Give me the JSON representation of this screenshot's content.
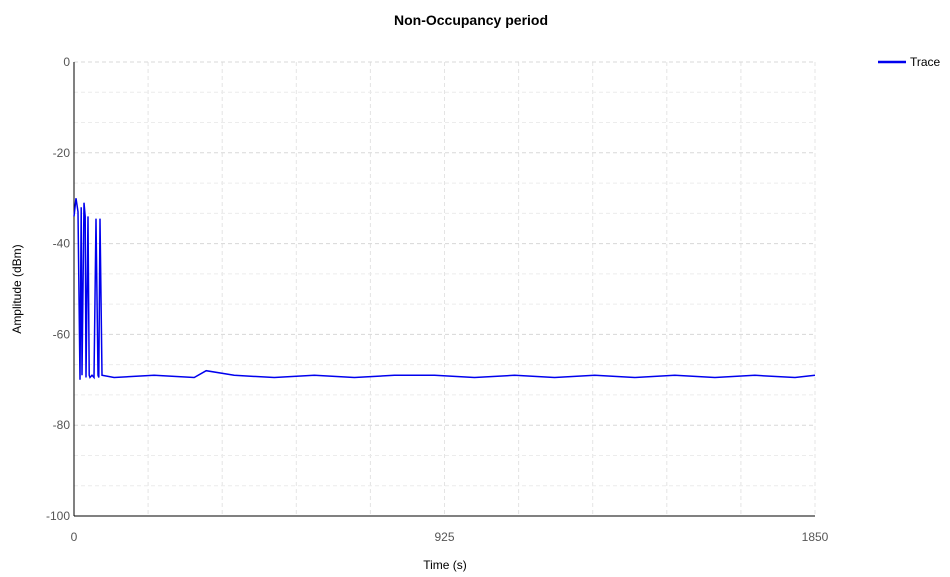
{
  "chart_data": {
    "type": "line",
    "title": "Non-Occupancy period",
    "xlabel": "Time (s)",
    "ylabel": "Amplitude (dBm)",
    "xlim": [
      0,
      1850
    ],
    "ylim": [
      -100,
      0
    ],
    "x_ticks": [
      "0",
      "925",
      "1850"
    ],
    "y_ticks": [
      "0",
      "-20",
      "-40",
      "-60",
      "-80",
      "-100"
    ],
    "grid": true,
    "legend_position": "top-right",
    "series": [
      {
        "name": "Trace",
        "color": "#0000ee",
        "x": [
          0,
          5,
          10,
          15,
          18,
          20,
          25,
          28,
          30,
          35,
          38,
          40,
          45,
          50,
          55,
          60,
          62,
          65,
          70,
          100,
          200,
          300,
          330,
          400,
          500,
          600,
          700,
          800,
          900,
          1000,
          1100,
          1200,
          1300,
          1400,
          1500,
          1600,
          1700,
          1800,
          1850
        ],
        "y": [
          -34,
          -30,
          -33,
          -70,
          -32,
          -69,
          -31,
          -34,
          -69.5,
          -34,
          -69,
          -69.5,
          -69,
          -69.5,
          -34.5,
          -69,
          -69.5,
          -34.5,
          -69,
          -69.5,
          -69,
          -69.5,
          -68,
          -69,
          -69.5,
          -69,
          -69.5,
          -69,
          -69,
          -69.5,
          -69,
          -69.5,
          -69,
          -69.5,
          -69,
          -69.5,
          -69,
          -69.5,
          -69
        ]
      }
    ]
  }
}
